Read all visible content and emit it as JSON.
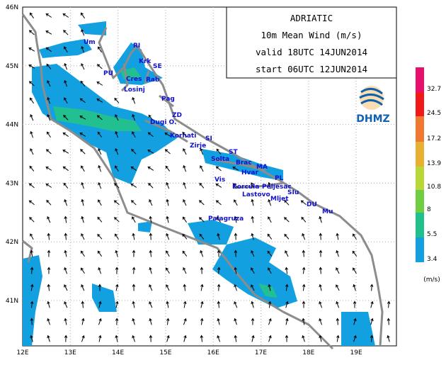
{
  "title_box": {
    "region": "ADRIATIC",
    "field": "10m  Mean Wind (m/s)",
    "valid": "valid 18UTC 14JUN2014",
    "start": "start 06UTC 12JUN2014"
  },
  "lon_labels": [
    "12E",
    "13E",
    "14E",
    "15E",
    "16E",
    "17E",
    "18E",
    "19E"
  ],
  "lat_labels": [
    "46N",
    "45N",
    "44N",
    "43N",
    "42N",
    "41N"
  ],
  "places": [
    "Um",
    "RI",
    "Krk",
    "SE",
    "PU",
    "Cres",
    "Rab",
    "Losinj",
    "Pag",
    "ZD",
    "Dugi O.",
    "Kornati",
    "SI",
    "Zirje",
    "ST",
    "Solta",
    "Brac",
    "MA",
    "Hvar",
    "Vis",
    "PL",
    "Korcula",
    "Peljesac",
    "Lastovo",
    "SIu",
    "Mljet",
    "DU",
    "Mu",
    "Palagruza"
  ],
  "colorbar": {
    "levels": [
      "32.7",
      "24.5",
      "17.2",
      "13.9",
      "10.8",
      "8",
      "5.5",
      "3.4"
    ],
    "unit": "(m/s)"
  },
  "logo": "DHMZ"
}
